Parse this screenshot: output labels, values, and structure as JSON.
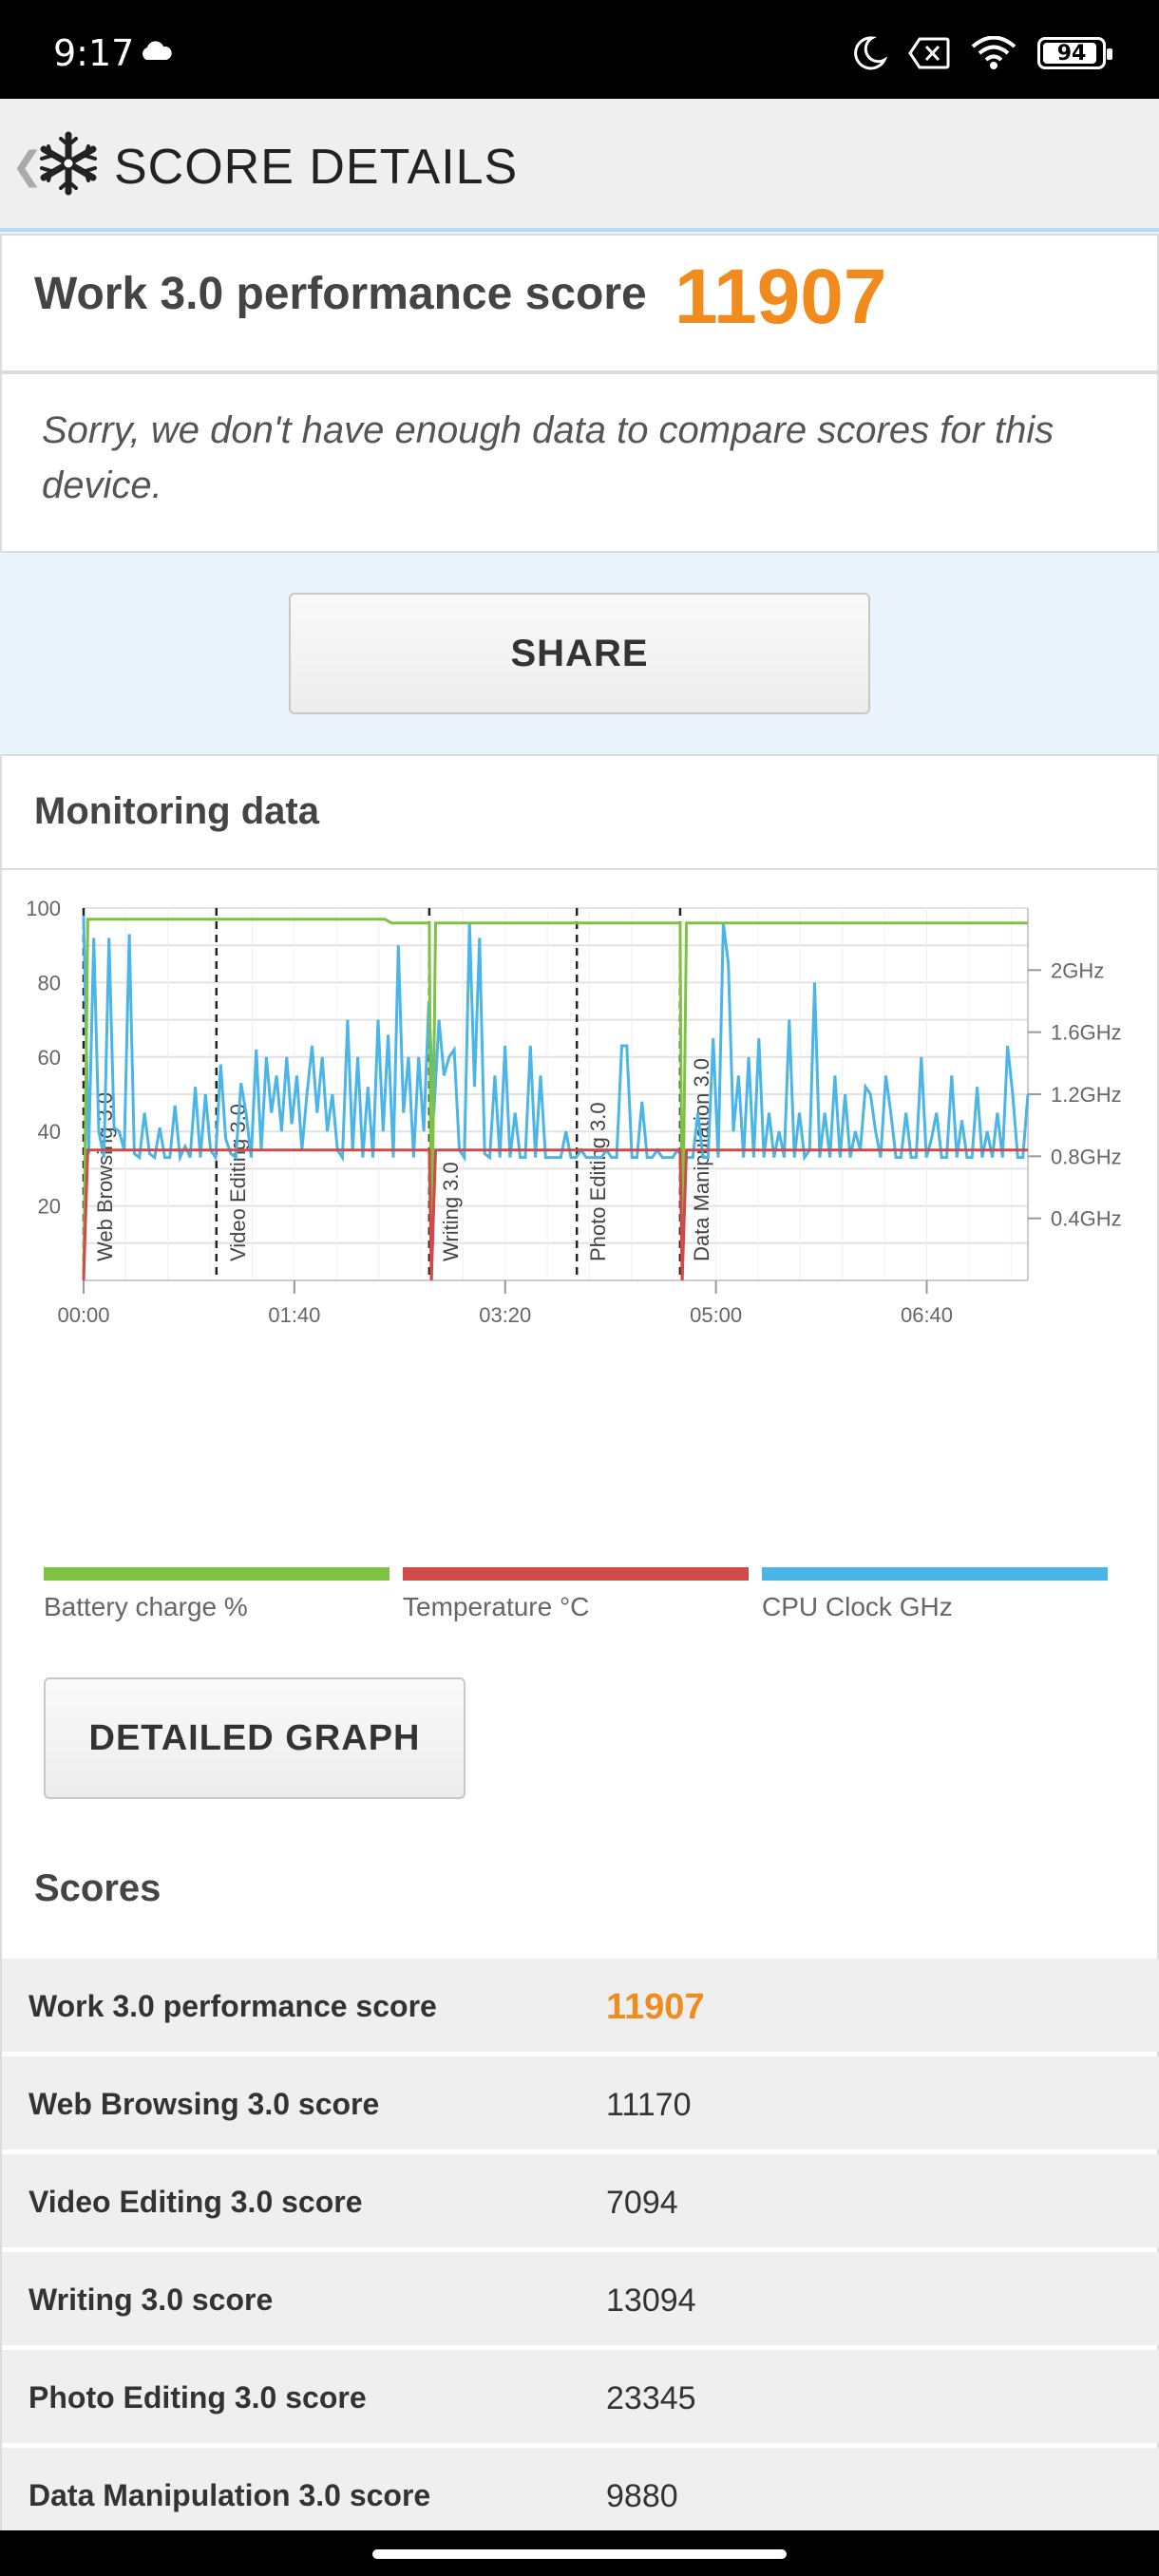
{
  "status_bar": {
    "time": "9:17",
    "battery": "94",
    "battery_level": 0.94
  },
  "header": {
    "title": "SCORE DETAILS"
  },
  "score_card": {
    "label": "Work 3.0 performance score",
    "value": "11907"
  },
  "message": "Sorry, we don't have enough data to compare scores for this device.",
  "share_button": "SHARE",
  "monitoring": {
    "title": "Monitoring data",
    "legend": [
      {
        "label": "Battery charge %",
        "color": "#7dc242"
      },
      {
        "label": "Temperature °C",
        "color": "#d04a4a"
      },
      {
        "label": "CPU Clock GHz",
        "color": "#4ab5e6"
      }
    ]
  },
  "chart_data": {
    "type": "line",
    "x_ticks": [
      "00:00",
      "01:40",
      "03:20",
      "05:00",
      "06:40"
    ],
    "y_left_ticks": [
      "100",
      "80",
      "60",
      "40",
      "20"
    ],
    "y_right_ticks": [
      "2GHz",
      "1.6GHz",
      "1.2GHz",
      "0.8GHz",
      "0.4GHz"
    ],
    "ylim_left": [
      0,
      100
    ],
    "ylim_right_ghz": [
      0,
      2.4
    ],
    "x_range_seconds": [
      0,
      448
    ],
    "grid": true,
    "sections": [
      {
        "label": "Web Browsing 3.0",
        "start_s": 0
      },
      {
        "label": "Video Editing 3.0",
        "start_s": 63
      },
      {
        "label": "Writing 3.0",
        "start_s": 164
      },
      {
        "label": "Photo Editing 3.0",
        "start_s": 234
      },
      {
        "label": "Data Manipulation 3.0",
        "start_s": 283
      }
    ],
    "series": [
      {
        "name": "Battery charge %",
        "points": [
          [
            0,
            0
          ],
          [
            2,
            97
          ],
          [
            143,
            97
          ],
          [
            146,
            96
          ],
          [
            164,
            96
          ],
          [
            165,
            0
          ],
          [
            167,
            96
          ],
          [
            283,
            96
          ],
          [
            284,
            0
          ],
          [
            286,
            96
          ],
          [
            448,
            96
          ]
        ]
      },
      {
        "name": "Temperature °C",
        "points": [
          [
            0,
            0
          ],
          [
            2,
            35
          ],
          [
            164,
            35
          ],
          [
            165,
            0
          ],
          [
            167,
            35
          ],
          [
            283,
            35
          ],
          [
            284,
            0
          ],
          [
            286,
            35
          ],
          [
            448,
            35
          ]
        ]
      },
      {
        "name": "CPU Clock GHz",
        "values_percent": [
          98,
          34,
          92,
          40,
          33,
          92,
          41,
          40,
          35,
          93,
          34,
          33,
          45,
          34,
          33,
          41,
          33,
          33,
          47,
          33,
          36,
          33,
          52,
          33,
          50,
          35,
          33,
          58,
          38,
          34,
          33,
          53,
          45,
          33,
          62,
          35,
          60,
          45,
          55,
          40,
          60,
          42,
          55,
          35,
          50,
          63,
          45,
          60,
          40,
          50,
          35,
          33,
          70,
          35,
          60,
          33,
          52,
          33,
          70,
          40,
          66,
          33,
          90,
          45,
          60,
          33,
          60,
          40,
          75,
          45,
          70,
          55,
          60,
          62,
          35,
          33,
          96,
          52,
          92,
          34,
          33,
          55,
          33,
          63,
          33,
          45,
          33,
          33,
          63,
          33,
          55,
          33,
          33,
          33,
          33,
          40,
          33,
          33,
          35,
          33,
          33,
          33,
          33,
          35,
          33,
          33,
          63,
          63,
          33,
          33,
          48,
          33,
          33,
          35,
          33,
          33,
          33,
          35,
          33,
          33,
          33,
          45,
          33,
          33,
          65,
          33,
          96,
          85,
          40,
          55,
          33,
          60,
          33,
          65,
          33,
          45,
          33,
          40,
          33,
          70,
          33,
          45,
          33,
          35,
          80,
          33,
          45,
          33,
          55,
          33,
          50,
          33,
          40,
          35,
          52,
          50,
          40,
          33,
          55,
          45,
          33,
          33,
          45,
          33,
          33,
          60,
          33,
          38,
          45,
          33,
          33,
          55,
          33,
          43,
          33,
          33,
          52,
          33,
          40,
          33,
          45,
          33,
          63,
          50,
          33,
          33,
          50
        ]
      }
    ]
  },
  "detailed_graph_button": "DETAILED GRAPH",
  "scores": {
    "title": "Scores",
    "rows": [
      {
        "label": "Work 3.0 performance score",
        "value": "11907"
      },
      {
        "label": "Web Browsing 3.0 score",
        "value": "11170"
      },
      {
        "label": "Video Editing 3.0 score",
        "value": "7094"
      },
      {
        "label": "Writing 3.0 score",
        "value": "13094"
      },
      {
        "label": "Photo Editing 3.0 score",
        "value": "23345"
      },
      {
        "label": "Data Manipulation 3.0 score",
        "value": "9880"
      }
    ]
  }
}
